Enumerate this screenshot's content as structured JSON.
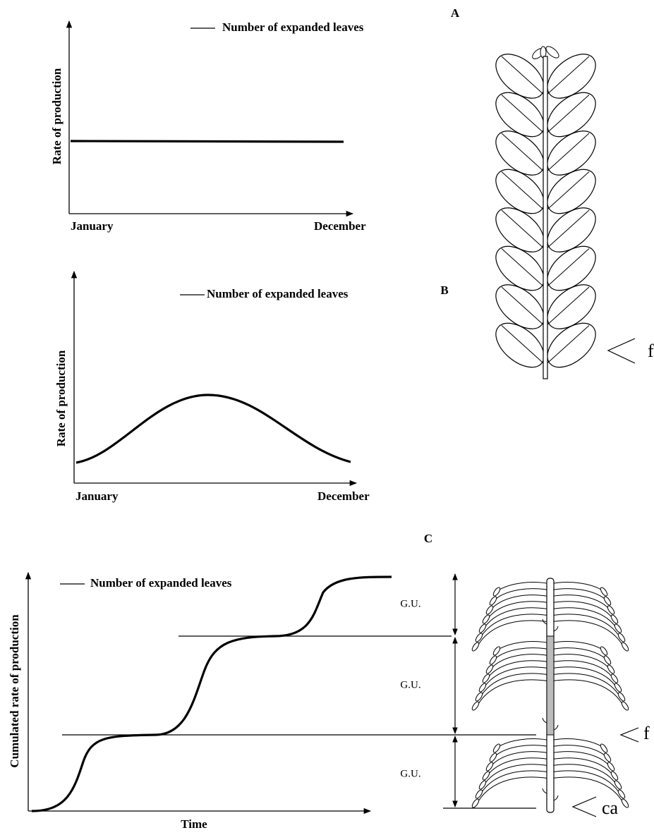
{
  "panels": [
    {
      "label": "A",
      "legend": "Number of expanded leaves",
      "y_axis": "Rate of production",
      "x_start": "January",
      "x_end": "December",
      "annotation": "f"
    },
    {
      "label": "B",
      "legend": "Number of expanded leaves",
      "y_axis": "Rate of production",
      "x_start": "January",
      "x_end": "December"
    },
    {
      "label": "C",
      "legend": "Number of expanded leaves",
      "y_axis": "Cumulated rate of production",
      "x_axis": "Time",
      "growth_units": [
        "G.U.",
        "G.U.",
        "G.U."
      ],
      "annotations": [
        "f",
        "ca"
      ]
    }
  ]
}
